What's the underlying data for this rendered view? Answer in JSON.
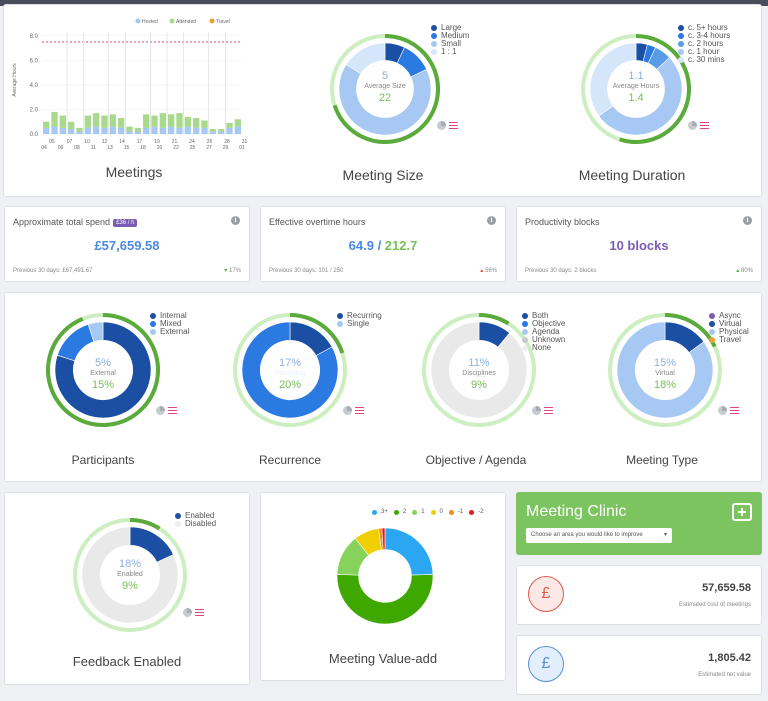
{
  "colors": {
    "dark_blue": "#1a4fa3",
    "mid_blue": "#2a7ae2",
    "light_blue": "#a6c8f2",
    "pale_blue": "#d6e6fa",
    "green": "#5aaa3c",
    "light_green": "#c8e9bd",
    "grey": "#e6e6e6",
    "purple": "#7b5cb3",
    "pink": "#e0457b",
    "red": "#e04b3c"
  },
  "meetings": {
    "title": "Meetings",
    "legend": [
      "Hosted",
      "Attended",
      "Travel"
    ],
    "ylabel": "Average Hours",
    "xticks_top": [
      "05",
      "07",
      "10",
      "12",
      "14",
      "17",
      "19",
      "21",
      "24",
      "26",
      "28",
      "31"
    ],
    "xticks_bottom": [
      "04",
      "06",
      "08",
      "11",
      "13",
      "15",
      "18",
      "20",
      "22",
      "25",
      "27",
      "29",
      "01"
    ]
  },
  "chart_data": [
    {
      "type": "bar",
      "title": "Meetings",
      "ylabel": "Average Hours",
      "yticks": [
        "8.0",
        "6.0",
        "4.0",
        "2.0",
        "0.0"
      ],
      "ylim": [
        0,
        8.8
      ],
      "reference_line": 7.5,
      "series": [
        {
          "name": "Hosted",
          "values": [
            0.5,
            0.6,
            0.5,
            0.4,
            0.2,
            0.5,
            0.6,
            0.5,
            0.6,
            0.5,
            0.2,
            0.2,
            0.5,
            0.6,
            0.5,
            0.6,
            0.5,
            0.6,
            0.5,
            0.5,
            0.2,
            0.2,
            0.5,
            0.6
          ]
        },
        {
          "name": "Attended",
          "values": [
            0.5,
            1.2,
            1.0,
            0.6,
            0.3,
            1.0,
            1.1,
            1.0,
            1.0,
            0.8,
            0.4,
            0.3,
            1.1,
            0.9,
            1.2,
            1.0,
            1.2,
            0.8,
            0.8,
            0.6,
            0.2,
            0.2,
            0.4,
            0.6
          ]
        },
        {
          "name": "Travel",
          "values": [
            0,
            0,
            0,
            0,
            0,
            0,
            0,
            0,
            0,
            0,
            0,
            0,
            0,
            0,
            0,
            0,
            0,
            0,
            0,
            0,
            0,
            0,
            0,
            0
          ]
        }
      ]
    },
    {
      "type": "pie",
      "title": "Meeting Size",
      "categories": [
        "Large",
        "Medium",
        "Small",
        "1 : 1"
      ],
      "values": [
        7,
        11,
        66,
        16
      ]
    },
    {
      "type": "pie",
      "title": "Meeting Duration",
      "categories": [
        "c. 5+ hours",
        "c. 3-4 hours",
        "c. 2 hours",
        "c. 1 hour",
        "c. 30 mins"
      ],
      "values": [
        4,
        3,
        6,
        52,
        35
      ]
    },
    {
      "type": "pie",
      "title": "Participants",
      "categories": [
        "Internal",
        "Mixed",
        "External"
      ],
      "values": [
        80,
        15,
        5
      ]
    },
    {
      "type": "pie",
      "title": "Recurrence",
      "categories": [
        "Recurring",
        "Single"
      ],
      "values": [
        17,
        83
      ]
    },
    {
      "type": "pie",
      "title": "Objective / Agenda",
      "categories": [
        "Both",
        "Objective",
        "Agenda",
        "Unknown",
        "None"
      ],
      "values": [
        11,
        0,
        0,
        0,
        89
      ]
    },
    {
      "type": "pie",
      "title": "Meeting Type",
      "categories": [
        "Async",
        "Virtual",
        "Physical",
        "Travel"
      ],
      "values": [
        0,
        15,
        85,
        0
      ]
    },
    {
      "type": "pie",
      "title": "Feedback Enabled",
      "categories": [
        "Enabled",
        "Disabled"
      ],
      "values": [
        18,
        82
      ]
    },
    {
      "type": "pie",
      "title": "Meeting Value-add",
      "categories": [
        "3+",
        "2",
        "1",
        "0",
        "-1",
        "-2"
      ],
      "values": [
        23,
        48,
        13,
        8,
        1,
        1
      ]
    }
  ],
  "size": {
    "title": "Meeting Size",
    "legend": [
      "Large",
      "Medium",
      "Small",
      "1 : 1"
    ],
    "center_top": "5",
    "center_label": "Average Size",
    "center_bottom": "22"
  },
  "duration": {
    "title": "Meeting Duration",
    "legend": [
      "c. 5+ hours",
      "c. 3-4 hours",
      "c. 2 hours",
      "c. 1 hour",
      "c. 30 mins"
    ],
    "center_top": "1.1",
    "center_label": "Average Hours",
    "center_bottom": "1.4"
  },
  "spend": {
    "header": "Approximate total spend",
    "badge": "£36 / h",
    "value": "£57,659.58",
    "previous": "Previous 30 days: £67,491.67",
    "trend": "17%"
  },
  "overtime": {
    "header": "Effective overtime hours",
    "value_a": "64.9",
    "sep": " / ",
    "value_b": "212.7",
    "previous": "Previous 30 days: 101 / 250",
    "trend": "56%"
  },
  "productivity": {
    "header": "Productivity blocks",
    "value": "10 blocks",
    "previous": "Previous 30 days: 2 blocks",
    "trend": "80%"
  },
  "participants": {
    "title": "Participants",
    "legend": [
      "Internal",
      "Mixed",
      "External"
    ],
    "center_top": "5%",
    "center_label": "External",
    "center_bottom": "15%"
  },
  "recurrence": {
    "title": "Recurrence",
    "legend": [
      "Recurring",
      "Single"
    ],
    "center_top": "17%",
    "center_label": "Recurring",
    "center_bottom": "20%"
  },
  "objective": {
    "title": "Objective / Agenda",
    "legend": [
      "Both",
      "Objective",
      "Agenda",
      "Unknown",
      "None"
    ],
    "center_top": "11%",
    "center_label": "Disciplines",
    "center_bottom": "9%"
  },
  "mtype": {
    "title": "Meeting Type",
    "legend": [
      "Async",
      "Virtual",
      "Physical",
      "Travel"
    ],
    "center_top": "15%",
    "center_label": "Virtual",
    "center_bottom": "18%"
  },
  "feedback": {
    "title": "Feedback Enabled",
    "legend": [
      "Enabled",
      "Disabled"
    ],
    "center_top": "18%",
    "center_label": "Enabled",
    "center_bottom": "9%"
  },
  "valueadd": {
    "title": "Meeting Value-add",
    "legend": [
      "3+",
      "2",
      "1",
      "0",
      "-1",
      "-2"
    ]
  },
  "clinic": {
    "title": "Meeting Clinic",
    "select_placeholder": "Choose an area you would like to improve"
  },
  "cost": {
    "symbol": "£",
    "value": "57,659.58",
    "label": "Estimated cost of meetings"
  },
  "net": {
    "symbol": "£",
    "value": "1,805.42",
    "label": "Estimated net value"
  }
}
